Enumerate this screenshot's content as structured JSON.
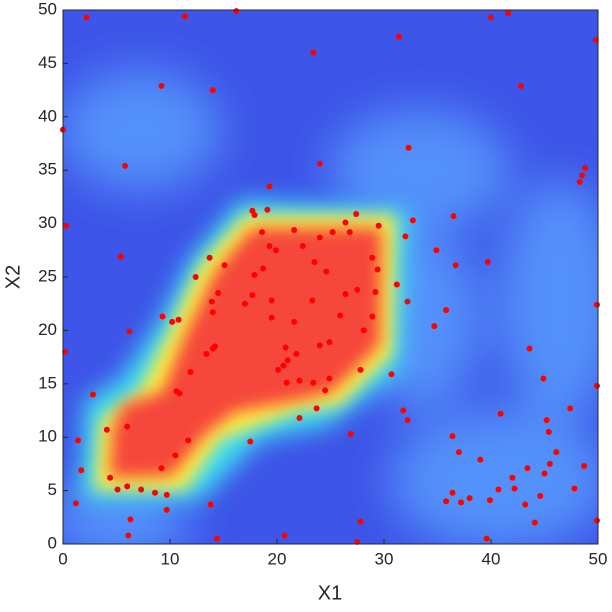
{
  "chart_data": {
    "type": "scatter",
    "xlabel": "X1",
    "ylabel": "X2",
    "xlim": [
      0,
      50
    ],
    "ylim": [
      0,
      50
    ],
    "xticks": [
      0,
      10,
      20,
      30,
      40,
      50
    ],
    "yticks": [
      0,
      5,
      10,
      15,
      20,
      25,
      30,
      35,
      40,
      45,
      50
    ],
    "color": "#ff0000",
    "x": [
      2.2,
      11.4,
      16.2,
      23.4,
      9.2,
      14.0,
      0,
      32.3,
      5.8,
      24.0,
      0.3,
      31.4,
      40.0,
      41.6,
      42.8,
      49.8,
      48.8,
      48.5,
      48.3,
      19.3,
      5.4,
      0.2,
      6.2,
      39.7,
      49.9,
      49.9,
      36.5,
      36.7,
      34.9,
      32.7,
      32.0,
      31.2,
      32.2,
      35.8,
      34.7,
      43.6,
      44.9,
      30.7,
      31.8,
      32.2,
      36.4,
      37.0,
      39.0,
      40.9,
      45.2,
      47.4,
      45.4,
      46.1,
      45.5,
      45.0,
      43.4,
      42.0,
      42.2,
      40.7,
      39.9,
      38.0,
      36.4,
      37.2,
      35.8,
      43.2,
      44.6,
      44.1,
      48.7,
      47.8,
      49.9,
      39.6,
      27.8,
      27.5,
      20.7,
      14.4,
      13.8,
      9.7,
      6.3,
      6.1,
      1.2,
      1.4,
      1.7,
      2.8,
      4.1,
      6.0,
      4.4,
      5.1,
      6.0,
      7.3,
      8.6,
      9.7,
      9.2,
      10.5,
      11.7,
      17.5,
      22.1,
      26.9,
      23.7,
      24.5,
      24.9,
      27.8,
      10.6,
      10.9,
      11.9,
      13.4,
      14.0,
      9.3,
      10.2,
      10.8,
      14.5,
      13.9,
      14.0,
      15.1,
      12.4,
      13.7,
      17.9,
      17.7,
      19.1,
      18.6,
      19.3,
      19.9,
      21.6,
      22.4,
      24.0,
      25.2,
      26.8,
      27.4,
      26.4,
      29.5,
      28.9,
      29.4,
      29.2,
      28.9,
      28.1,
      18.7,
      17.9,
      17.7,
      19.5,
      17.0,
      19.5,
      21.6,
      20.8,
      21.8,
      21.0,
      20.6,
      20.1,
      20.9,
      22.1,
      23.4,
      24.9,
      24.0,
      23.3,
      24.6,
      26.4,
      25.9,
      27.5,
      23.5,
      14.2
    ],
    "y": [
      49.3,
      49.4,
      49.9,
      46.0,
      42.9,
      42.5,
      38.8,
      37.1,
      35.4,
      35.6,
      29.8,
      47.5,
      49.3,
      49.7,
      42.9,
      47.2,
      35.2,
      34.5,
      33.9,
      33.5,
      26.9,
      18.0,
      19.9,
      26.4,
      22.4,
      14.8,
      30.7,
      26.1,
      27.5,
      30.3,
      28.8,
      24.3,
      22.7,
      21.9,
      20.4,
      18.3,
      15.5,
      15.9,
      12.5,
      11.6,
      10.1,
      8.6,
      7.9,
      12.2,
      11.6,
      12.7,
      10.5,
      8.6,
      7.5,
      6.6,
      7.1,
      6.2,
      5.2,
      5.1,
      4.1,
      4.3,
      4.8,
      3.9,
      4.0,
      3.7,
      4.5,
      2.0,
      7.3,
      5.2,
      2.2,
      0.5,
      2.1,
      0.2,
      0.8,
      0.5,
      3.7,
      3.2,
      2.3,
      0.8,
      3.8,
      9.7,
      6.9,
      14.0,
      10.7,
      11.0,
      6.2,
      5.1,
      5.4,
      5.1,
      4.8,
      4.6,
      7.1,
      8.3,
      9.7,
      9.6,
      11.8,
      10.3,
      12.7,
      14.4,
      15.5,
      16.3,
      14.3,
      14.1,
      16.1,
      17.8,
      18.3,
      21.3,
      20.8,
      21.0,
      23.5,
      22.7,
      21.7,
      26.1,
      25.0,
      26.8,
      30.8,
      31.2,
      31.3,
      29.2,
      27.9,
      27.5,
      29.4,
      27.9,
      28.7,
      29.2,
      29.2,
      30.9,
      30.1,
      29.8,
      26.8,
      25.7,
      23.6,
      21.3,
      20.0,
      25.8,
      25.2,
      23.3,
      22.8,
      22.5,
      21.2,
      20.8,
      18.4,
      17.8,
      17.2,
      16.7,
      16.3,
      15.1,
      15.3,
      15.1,
      18.9,
      18.6,
      22.8,
      25.5,
      23.4,
      21.4,
      23.8,
      26.4,
      18.5
    ]
  }
}
